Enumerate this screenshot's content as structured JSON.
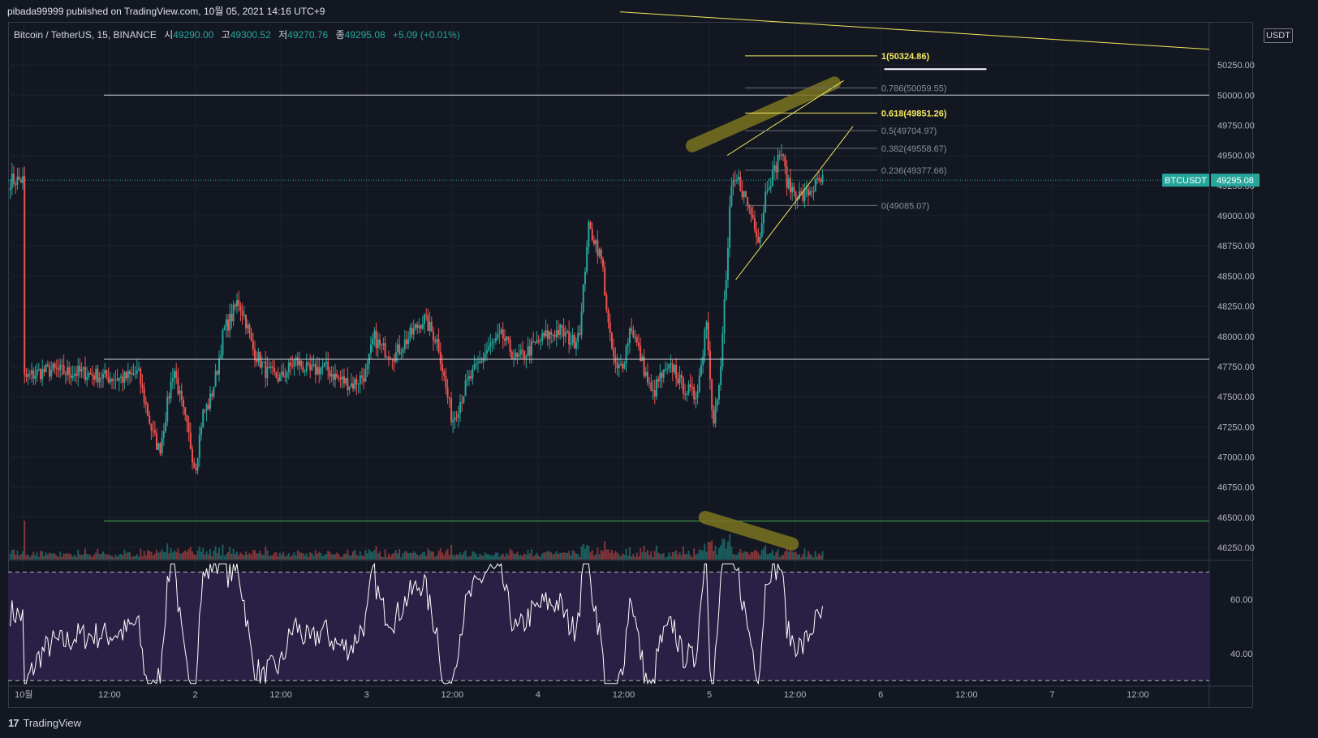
{
  "banner": {
    "text": "pibada99999 published on TradingView.com, 10월 05, 2021 14:16 UTC+9"
  },
  "legend": {
    "symbol": "Bitcoin / TetherUS, 15, BINANCE",
    "open_label": "시",
    "open": "49290.00",
    "high_label": "고",
    "high": "49300.52",
    "low_label": "저",
    "low": "49270.76",
    "close_label": "종",
    "close": "49295.08",
    "change": "+5.09 (+0.01%)"
  },
  "currency_badge": "USDT",
  "footer": {
    "brand": "TradingView",
    "logo_text": "17"
  },
  "colors": {
    "background": "#131722",
    "grid": "#1e222d",
    "up": "#26a69a",
    "down": "#ef5350",
    "annotation": "#f5e85c",
    "highlight": "#7a7420",
    "rsi_band": "#2a1f45",
    "price_tag": "#26a69a",
    "hline": "#d1d4dc",
    "support_line": "#4caf50"
  },
  "chart_data": {
    "type": "candlestick",
    "symbol": "BTCUSDT",
    "interval": "15",
    "exchange": "BINANCE",
    "price_axis": {
      "ticks": [
        "50250.00",
        "50000.00",
        "49750.00",
        "49500.00",
        "49250.00",
        "49000.00",
        "48750.00",
        "48500.00",
        "48250.00",
        "48000.00",
        "47750.00",
        "47500.00",
        "47250.00",
        "47000.00",
        "46750.00",
        "46500.00",
        "46250.00"
      ],
      "tick_values": [
        50250,
        50000,
        49750,
        49500,
        49250,
        49000,
        48750,
        48500,
        48250,
        48000,
        47750,
        47500,
        47250,
        47000,
        46750,
        46500,
        46250
      ],
      "range": [
        46150,
        50600
      ]
    },
    "time_axis": {
      "labels": [
        "10월",
        "12:00",
        "2",
        "12:00",
        "3",
        "12:00",
        "4",
        "12:00",
        "5",
        "12:00",
        "6",
        "12:00",
        "7",
        "12:00"
      ],
      "hours": [
        0,
        12,
        24,
        36,
        48,
        60,
        72,
        84,
        96,
        108,
        120,
        132,
        144,
        156
      ],
      "range_hours": [
        -2.2,
        166
      ]
    },
    "current_price": {
      "label": "BTCUSDT",
      "value": "49295.08",
      "price": 49295.08
    },
    "horizontal_lines": [
      {
        "price": 50000,
        "color": "#d1d4dc"
      },
      {
        "price": 47810,
        "color": "#d1d4dc"
      },
      {
        "price": 46470,
        "color": "#4caf50"
      }
    ],
    "fibonacci": {
      "start_hours": 101,
      "end_hours": 119.5,
      "levels": [
        {
          "label": "1(50324.86)",
          "price": 50324.86,
          "highlight": true
        },
        {
          "label": "0.786(50059.55)",
          "price": 50059.55,
          "highlight": false
        },
        {
          "label": "0.618(49851.26)",
          "price": 49851.26,
          "highlight": true
        },
        {
          "label": "0.5(49704.97)",
          "price": 49704.97,
          "highlight": false
        },
        {
          "label": "0.382(49558.67)",
          "price": 49558.67,
          "highlight": false
        },
        {
          "label": "0.236(49377.66)",
          "price": 49377.66,
          "highlight": false
        },
        {
          "label": "0(49085.07)",
          "price": 49085.07,
          "highlight": false
        }
      ]
    },
    "trendlines": [
      {
        "from": [
          83.5,
          50690
        ],
        "to": [
          166,
          50380
        ]
      },
      {
        "from": [
          99.7,
          48470
        ],
        "to": [
          116.1,
          49740
        ]
      },
      {
        "from": [
          98.5,
          49500
        ],
        "to": [
          114.8,
          50120
        ]
      },
      {
        "from": [
          120.5,
          50215
        ],
        "to": [
          134.8,
          50215
        ],
        "color": "#ffffff"
      }
    ],
    "highlights": [
      {
        "from": [
          93.6,
          49580
        ],
        "to": [
          113.5,
          50100
        ]
      },
      {
        "from": [
          95.4,
          46500
        ],
        "to": [
          107.6,
          46280
        ]
      }
    ],
    "rsi": {
      "ticks": [
        "60.00",
        "40.00"
      ],
      "tick_values": [
        60,
        40
      ],
      "upper": 70,
      "lower": 30,
      "range": [
        28,
        74
      ]
    },
    "series_anchors": [
      {
        "h": 0,
        "p": 47650
      },
      {
        "h": 2,
        "p": 47700
      },
      {
        "h": 4,
        "p": 47720
      },
      {
        "h": 6,
        "p": 47700
      },
      {
        "h": 8,
        "p": 47700
      },
      {
        "h": 10,
        "p": 47680
      },
      {
        "h": 12,
        "p": 47660
      },
      {
        "h": 14,
        "p": 47650
      },
      {
        "h": 16,
        "p": 47700
      },
      {
        "h": 18,
        "p": 47200
      },
      {
        "h": 19,
        "p": 47050
      },
      {
        "h": 20,
        "p": 47400
      },
      {
        "h": 21,
        "p": 47750
      },
      {
        "h": 22,
        "p": 47450
      },
      {
        "h": 23,
        "p": 47200
      },
      {
        "h": 24,
        "p": 46900
      },
      {
        "h": 25,
        "p": 47350
      },
      {
        "h": 26,
        "p": 47450
      },
      {
        "h": 27,
        "p": 47700
      },
      {
        "h": 28,
        "p": 48050
      },
      {
        "h": 29,
        "p": 48150
      },
      {
        "h": 30,
        "p": 48300
      },
      {
        "h": 31,
        "p": 48150
      },
      {
        "h": 32,
        "p": 47900
      },
      {
        "h": 33,
        "p": 47800
      },
      {
        "h": 34,
        "p": 47700
      },
      {
        "h": 36,
        "p": 47650
      },
      {
        "h": 38,
        "p": 47800
      },
      {
        "h": 40,
        "p": 47700
      },
      {
        "h": 42,
        "p": 47750
      },
      {
        "h": 44,
        "p": 47650
      },
      {
        "h": 46,
        "p": 47600
      },
      {
        "h": 48,
        "p": 47700
      },
      {
        "h": 49,
        "p": 48000
      },
      {
        "h": 50,
        "p": 47900
      },
      {
        "h": 52,
        "p": 47850
      },
      {
        "h": 54,
        "p": 48000
      },
      {
        "h": 56,
        "p": 48150
      },
      {
        "h": 58,
        "p": 47950
      },
      {
        "h": 59,
        "p": 47600
      },
      {
        "h": 60,
        "p": 47300
      },
      {
        "h": 61,
        "p": 47450
      },
      {
        "h": 62,
        "p": 47600
      },
      {
        "h": 63,
        "p": 47700
      },
      {
        "h": 65,
        "p": 47900
      },
      {
        "h": 67,
        "p": 48000
      },
      {
        "h": 69,
        "p": 47800
      },
      {
        "h": 71,
        "p": 47900
      },
      {
        "h": 73,
        "p": 48000
      },
      {
        "h": 75,
        "p": 48050
      },
      {
        "h": 77,
        "p": 47950
      },
      {
        "h": 78,
        "p": 48100
      },
      {
        "h": 79,
        "p": 48900
      },
      {
        "h": 80,
        "p": 48800
      },
      {
        "h": 81,
        "p": 48600
      },
      {
        "h": 82,
        "p": 48000
      },
      {
        "h": 83,
        "p": 47700
      },
      {
        "h": 84,
        "p": 47800
      },
      {
        "h": 85,
        "p": 48100
      },
      {
        "h": 86,
        "p": 47900
      },
      {
        "h": 87,
        "p": 47700
      },
      {
        "h": 88,
        "p": 47500
      },
      {
        "h": 89,
        "p": 47650
      },
      {
        "h": 90,
        "p": 47700
      },
      {
        "h": 91,
        "p": 47750
      },
      {
        "h": 92,
        "p": 47600
      },
      {
        "h": 93,
        "p": 47550
      },
      {
        "h": 94,
        "p": 47500
      },
      {
        "h": 95,
        "p": 47800
      },
      {
        "h": 95.5,
        "p": 48200
      },
      {
        "h": 96,
        "p": 47800
      },
      {
        "h": 96.5,
        "p": 47300
      },
      {
        "h": 97.5,
        "p": 47600
      },
      {
        "h": 98,
        "p": 48200
      },
      {
        "h": 98.5,
        "p": 48600
      },
      {
        "h": 99,
        "p": 49200
      },
      {
        "h": 100,
        "p": 49300
      },
      {
        "h": 101,
        "p": 49150
      },
      {
        "h": 102,
        "p": 49000
      },
      {
        "h": 103,
        "p": 48800
      },
      {
        "h": 104,
        "p": 49250
      },
      {
        "h": 105,
        "p": 49350
      },
      {
        "h": 106,
        "p": 49550
      },
      {
        "h": 107,
        "p": 49250
      },
      {
        "h": 108,
        "p": 49200
      },
      {
        "h": 109,
        "p": 49150
      },
      {
        "h": 110,
        "p": 49200
      },
      {
        "h": 111,
        "p": 49260
      },
      {
        "h": 112,
        "p": 49295
      }
    ],
    "last_hour": 112
  }
}
